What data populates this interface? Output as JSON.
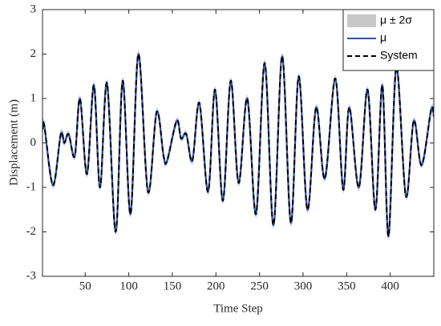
{
  "chart_data": {
    "type": "line",
    "xlabel": "Time Step",
    "ylabel": "Displacement (m)",
    "x": [
      1,
      3,
      13,
      22,
      26,
      31,
      38,
      44,
      52,
      60,
      67,
      75,
      85,
      93,
      102,
      111,
      122,
      132,
      140,
      144,
      155,
      160,
      166,
      173,
      181,
      191,
      199,
      208,
      217,
      226,
      236,
      246,
      256,
      266,
      276,
      286,
      295,
      305,
      315,
      325,
      337,
      346,
      353,
      364,
      374,
      383,
      391,
      398,
      407,
      418,
      427,
      436,
      447,
      450
    ],
    "series": [
      {
        "name": "μ ± 2σ",
        "color": "#c8c8c8",
        "band": true,
        "values": [
          0.06,
          0.06,
          0.06,
          0.06,
          0.06,
          0.06,
          0.06,
          0.06,
          0.06,
          0.06,
          0.06,
          0.06,
          0.06,
          0.06,
          0.06,
          0.06,
          0.06,
          0.06,
          0.06,
          0.06,
          0.06,
          0.06,
          0.06,
          0.06,
          0.06,
          0.06,
          0.06,
          0.06,
          0.06,
          0.06,
          0.06,
          0.06,
          0.06,
          0.06,
          0.06,
          0.06,
          0.06,
          0.06,
          0.06,
          0.06,
          0.06,
          0.06,
          0.06,
          0.06,
          0.06,
          0.06,
          0.06,
          0.06,
          0.06,
          0.06,
          0.06,
          0.06,
          0.06,
          0.06
        ]
      },
      {
        "name": "μ",
        "color": "#2f4fa8",
        "values": [
          0.3,
          0.4,
          -0.95,
          0.2,
          0.0,
          0.2,
          -0.3,
          1.0,
          -0.7,
          1.3,
          -1.0,
          1.35,
          -2.0,
          1.4,
          -1.6,
          2.0,
          -1.1,
          0.7,
          -0.3,
          -0.4,
          0.5,
          0.1,
          0.2,
          -0.4,
          0.9,
          -1.1,
          1.2,
          -1.3,
          1.4,
          -0.9,
          1.0,
          -1.6,
          1.8,
          -1.85,
          1.95,
          -1.8,
          1.5,
          -1.5,
          0.8,
          -0.8,
          1.45,
          -1.05,
          0.8,
          -1.0,
          1.2,
          -1.5,
          1.3,
          -2.1,
          1.7,
          -1.2,
          0.5,
          -0.5,
          0.75,
          0.6
        ]
      },
      {
        "name": "System",
        "color": "#000000",
        "dashed": true,
        "values": [
          0.3,
          0.4,
          -0.95,
          0.2,
          0.0,
          0.2,
          -0.3,
          1.0,
          -0.7,
          1.3,
          -1.0,
          1.35,
          -2.0,
          1.4,
          -1.6,
          2.0,
          -1.1,
          0.7,
          -0.3,
          -0.4,
          0.5,
          0.1,
          0.2,
          -0.4,
          0.9,
          -1.1,
          1.2,
          -1.3,
          1.4,
          -0.9,
          1.0,
          -1.6,
          1.8,
          -1.85,
          1.95,
          -1.8,
          1.5,
          -1.5,
          0.8,
          -0.8,
          1.45,
          -1.05,
          0.8,
          -1.0,
          1.2,
          -1.5,
          1.3,
          -2.1,
          1.7,
          -1.2,
          0.5,
          -0.5,
          0.75,
          0.6
        ]
      }
    ],
    "xlim": [
      1,
      450
    ],
    "xticks": [
      50,
      100,
      150,
      200,
      250,
      300,
      350,
      400
    ],
    "ylim": [
      -3,
      3
    ],
    "yticks": [
      -3,
      -2,
      -1,
      0,
      1,
      2,
      3
    ],
    "legend": "upper right"
  }
}
